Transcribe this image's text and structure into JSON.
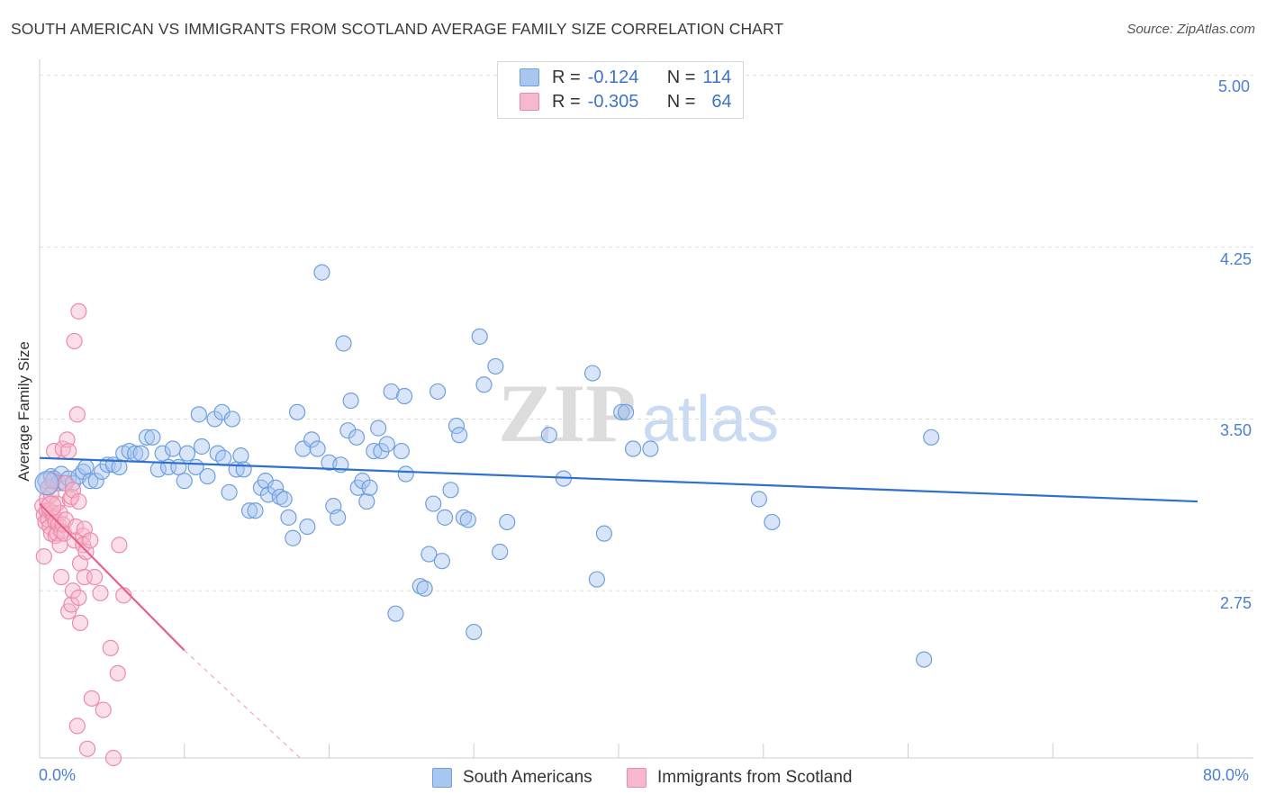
{
  "title": "SOUTH AMERICAN VS IMMIGRANTS FROM SCOTLAND AVERAGE FAMILY SIZE CORRELATION CHART",
  "source": "Source: ZipAtlas.com",
  "watermark": {
    "zip": "ZIP",
    "atlas": "atlas"
  },
  "legend": {
    "rows": [
      {
        "r_label": "R =",
        "r_value": "-0.124",
        "n_label": "N =",
        "n_value": "114",
        "color": "#a9c6ef"
      },
      {
        "r_label": "R =",
        "r_value": "-0.305",
        "n_label": "N =",
        "n_value": "64",
        "color": "#f6b8cb"
      }
    ]
  },
  "bottom_legend": [
    {
      "label": "South Americans",
      "color": "#a9c6ef"
    },
    {
      "label": "Immigrants from Scotland",
      "color": "#f6b8cb"
    }
  ],
  "chart_data": {
    "type": "scatter",
    "title": "SOUTH AMERICAN VS IMMIGRANTS FROM SCOTLAND AVERAGE FAMILY SIZE CORRELATION CHART",
    "xlabel": "",
    "ylabel": "Average Family Size",
    "xlim": [
      0,
      80
    ],
    "ylim": [
      2.02,
      5.07
    ],
    "x_tick_labels": [
      "0.0%",
      "80.0%"
    ],
    "y_ticks": [
      {
        "value": 5.0,
        "label": "5.00"
      },
      {
        "value": 4.25,
        "label": "4.25"
      },
      {
        "value": 3.5,
        "label": "3.50"
      },
      {
        "value": 2.75,
        "label": "2.75"
      }
    ],
    "grid": true,
    "series": [
      {
        "name": "South Americans",
        "color": "#6e9fe0",
        "fill": "#a9c6ef",
        "r": -0.124,
        "n": 114,
        "trend": {
          "x": [
            0,
            80
          ],
          "y": [
            3.33,
            3.14
          ],
          "style": "solid"
        },
        "points": [
          [
            0.4,
            3.23
          ],
          [
            0.6,
            3.2
          ],
          [
            0.8,
            3.25
          ],
          [
            1.0,
            3.24
          ],
          [
            1.3,
            3.22
          ],
          [
            1.5,
            3.26
          ],
          [
            1.7,
            3.22
          ],
          [
            2.0,
            3.24
          ],
          [
            2.3,
            3.22
          ],
          [
            2.7,
            3.25
          ],
          [
            3.0,
            3.27
          ],
          [
            3.2,
            3.29
          ],
          [
            3.5,
            3.23
          ],
          [
            3.9,
            3.23
          ],
          [
            4.3,
            3.27
          ],
          [
            4.7,
            3.3
          ],
          [
            5.1,
            3.3
          ],
          [
            5.5,
            3.29
          ],
          [
            5.8,
            3.35
          ],
          [
            6.2,
            3.36
          ],
          [
            6.6,
            3.35
          ],
          [
            7.0,
            3.35
          ],
          [
            7.4,
            3.42
          ],
          [
            7.8,
            3.42
          ],
          [
            8.2,
            3.28
          ],
          [
            8.5,
            3.35
          ],
          [
            8.9,
            3.29
          ],
          [
            9.2,
            3.37
          ],
          [
            9.6,
            3.29
          ],
          [
            10.0,
            3.23
          ],
          [
            10.2,
            3.35
          ],
          [
            10.8,
            3.29
          ],
          [
            11.2,
            3.38
          ],
          [
            11.0,
            3.52
          ],
          [
            11.6,
            3.25
          ],
          [
            12.1,
            3.5
          ],
          [
            12.3,
            3.35
          ],
          [
            12.6,
            3.53
          ],
          [
            12.7,
            3.33
          ],
          [
            13.1,
            3.18
          ],
          [
            13.3,
            3.5
          ],
          [
            13.6,
            3.28
          ],
          [
            13.9,
            3.34
          ],
          [
            14.1,
            3.28
          ],
          [
            14.5,
            3.1
          ],
          [
            14.9,
            3.1
          ],
          [
            15.3,
            3.2
          ],
          [
            15.6,
            3.23
          ],
          [
            15.8,
            3.17
          ],
          [
            16.3,
            3.2
          ],
          [
            16.6,
            3.16
          ],
          [
            16.9,
            3.15
          ],
          [
            17.2,
            3.07
          ],
          [
            17.5,
            2.98
          ],
          [
            18.2,
            3.37
          ],
          [
            17.8,
            3.53
          ],
          [
            18.5,
            3.03
          ],
          [
            18.8,
            3.41
          ],
          [
            19.2,
            3.37
          ],
          [
            19.5,
            4.14
          ],
          [
            20.0,
            3.31
          ],
          [
            20.3,
            3.12
          ],
          [
            20.8,
            3.3
          ],
          [
            20.6,
            3.07
          ],
          [
            21.0,
            3.83
          ],
          [
            21.3,
            3.45
          ],
          [
            21.9,
            3.42
          ],
          [
            21.5,
            3.58
          ],
          [
            22.0,
            3.2
          ],
          [
            22.3,
            3.23
          ],
          [
            22.6,
            3.14
          ],
          [
            22.8,
            3.2
          ],
          [
            23.1,
            3.36
          ],
          [
            23.4,
            3.46
          ],
          [
            23.6,
            3.36
          ],
          [
            24.0,
            3.39
          ],
          [
            24.3,
            3.62
          ],
          [
            24.6,
            2.65
          ],
          [
            25.2,
            3.6
          ],
          [
            25.0,
            3.36
          ],
          [
            25.3,
            3.26
          ],
          [
            26.3,
            2.77
          ],
          [
            26.6,
            2.76
          ],
          [
            26.9,
            2.91
          ],
          [
            27.2,
            3.13
          ],
          [
            27.5,
            3.62
          ],
          [
            27.8,
            2.88
          ],
          [
            28.0,
            3.07
          ],
          [
            28.4,
            3.19
          ],
          [
            28.8,
            3.47
          ],
          [
            29.0,
            3.43
          ],
          [
            29.3,
            3.07
          ],
          [
            29.6,
            3.06
          ],
          [
            30.0,
            2.57
          ],
          [
            30.4,
            3.86
          ],
          [
            30.7,
            3.65
          ],
          [
            31.5,
            3.73
          ],
          [
            31.8,
            2.92
          ],
          [
            32.3,
            3.05
          ],
          [
            35.2,
            3.43
          ],
          [
            36.2,
            3.24
          ],
          [
            38.2,
            3.7
          ],
          [
            38.5,
            2.8
          ],
          [
            39.0,
            3.0
          ],
          [
            40.2,
            3.53
          ],
          [
            40.5,
            3.53
          ],
          [
            41.0,
            3.37
          ],
          [
            42.2,
            3.37
          ],
          [
            49.7,
            3.15
          ],
          [
            50.6,
            3.05
          ],
          [
            61.1,
            2.45
          ],
          [
            61.6,
            3.42
          ]
        ]
      },
      {
        "name": "Immigrants from Scotland",
        "color": "#ee8aa9",
        "fill": "#f6b8cb",
        "r": -0.305,
        "n": 64,
        "trend": {
          "x": [
            0,
            10
          ],
          "y": [
            3.13,
            2.49
          ],
          "style": "solid",
          "dashed_extension": {
            "x": [
              10,
              18
            ],
            "y": [
              2.49,
              2.02
            ]
          }
        },
        "points": [
          [
            0.2,
            3.12
          ],
          [
            0.3,
            3.08
          ],
          [
            0.4,
            3.05
          ],
          [
            0.5,
            3.15
          ],
          [
            0.5,
            3.1
          ],
          [
            0.6,
            3.2
          ],
          [
            0.6,
            3.06
          ],
          [
            0.7,
            3.1
          ],
          [
            0.7,
            3.03
          ],
          [
            0.8,
            3.17
          ],
          [
            0.8,
            3.0
          ],
          [
            0.9,
            3.09
          ],
          [
            0.9,
            3.23
          ],
          [
            1.0,
            3.07
          ],
          [
            1.0,
            3.36
          ],
          [
            1.1,
            3.05
          ],
          [
            1.1,
            2.99
          ],
          [
            1.2,
            3.13
          ],
          [
            1.2,
            3.0
          ],
          [
            1.3,
            3.04
          ],
          [
            1.4,
            3.09
          ],
          [
            1.4,
            2.95
          ],
          [
            1.5,
            3.01
          ],
          [
            1.5,
            2.81
          ],
          [
            1.6,
            3.04
          ],
          [
            1.6,
            3.37
          ],
          [
            1.7,
            3.0
          ],
          [
            1.8,
            3.06
          ],
          [
            1.8,
            3.22
          ],
          [
            1.9,
            3.41
          ],
          [
            2.0,
            3.36
          ],
          [
            2.0,
            2.66
          ],
          [
            2.1,
            3.15
          ],
          [
            2.2,
            2.69
          ],
          [
            2.2,
            3.16
          ],
          [
            2.3,
            3.19
          ],
          [
            2.3,
            2.75
          ],
          [
            2.4,
            2.97
          ],
          [
            2.4,
            3.84
          ],
          [
            2.5,
            3.03
          ],
          [
            2.6,
            2.16
          ],
          [
            2.6,
            3.52
          ],
          [
            2.7,
            3.97
          ],
          [
            2.7,
            3.14
          ],
          [
            2.7,
            2.72
          ],
          [
            2.8,
            2.61
          ],
          [
            2.8,
            2.87
          ],
          [
            3.0,
            2.99
          ],
          [
            3.0,
            2.95
          ],
          [
            3.1,
            2.81
          ],
          [
            3.1,
            3.02
          ],
          [
            3.2,
            2.92
          ],
          [
            3.3,
            2.06
          ],
          [
            3.5,
            2.97
          ],
          [
            3.6,
            2.28
          ],
          [
            3.8,
            2.81
          ],
          [
            4.2,
            2.74
          ],
          [
            4.4,
            2.23
          ],
          [
            4.9,
            2.5
          ],
          [
            5.1,
            2.02
          ],
          [
            5.4,
            2.39
          ],
          [
            5.5,
            2.95
          ],
          [
            5.8,
            2.73
          ],
          [
            0.3,
            2.9
          ]
        ]
      }
    ]
  }
}
